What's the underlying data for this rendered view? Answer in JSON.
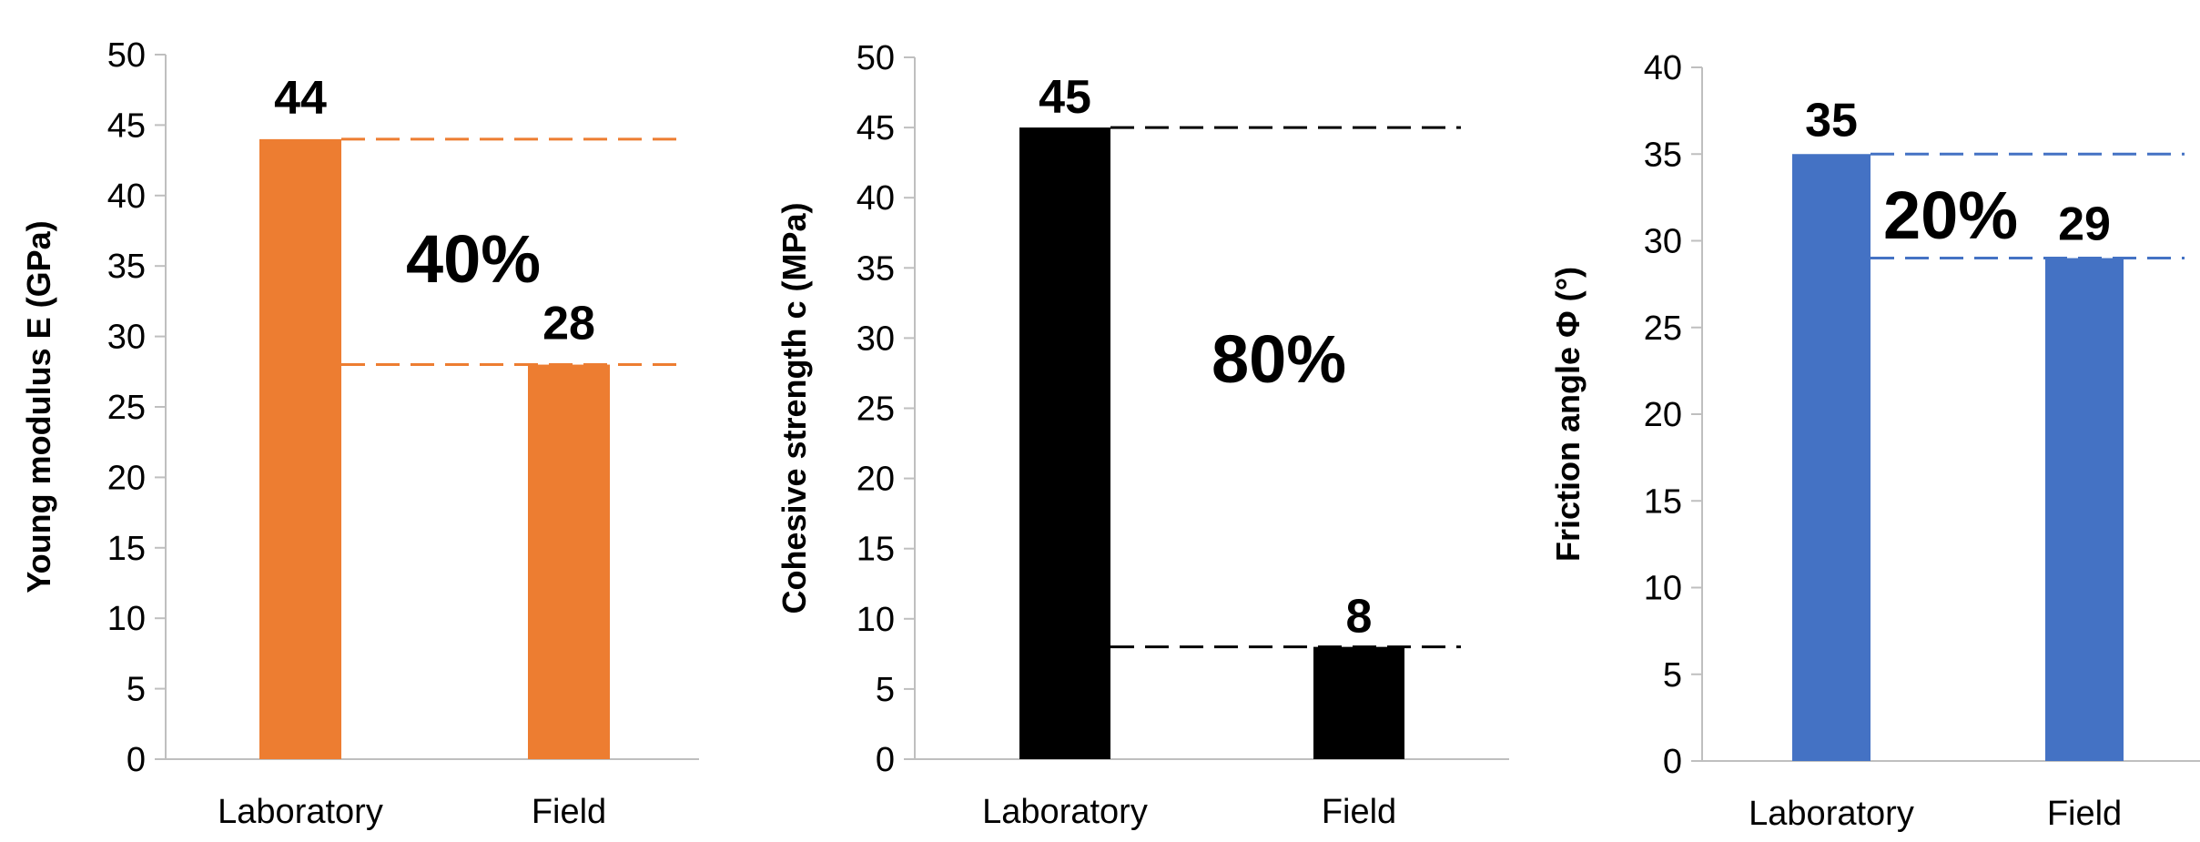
{
  "chart_data": [
    {
      "type": "bar",
      "categories": [
        "Laboratory",
        "Field"
      ],
      "values": [
        44,
        28
      ],
      "ylabel": "Young modulus E (GPa)",
      "ylim": [
        0,
        50
      ],
      "yticks": [
        0,
        5,
        10,
        15,
        20,
        25,
        30,
        35,
        40,
        45,
        50
      ],
      "data_labels": [
        "44",
        "28"
      ],
      "annotation": "40%",
      "color": "#ED7D31",
      "grid": false
    },
    {
      "type": "bar",
      "categories": [
        "Laboratory",
        "Field"
      ],
      "values": [
        45,
        8
      ],
      "ylabel": "Cohesive strength c  (MPa)",
      "ylim": [
        0,
        50
      ],
      "yticks": [
        0,
        5,
        10,
        15,
        20,
        25,
        30,
        35,
        40,
        45,
        50
      ],
      "data_labels": [
        "45",
        "8"
      ],
      "annotation": "80%",
      "color": "#000000",
      "grid": false
    },
    {
      "type": "bar",
      "categories": [
        "Laboratory",
        "Field"
      ],
      "values": [
        35,
        29
      ],
      "ylabel": "Friction angle Φ (°)",
      "ylim": [
        0,
        40
      ],
      "yticks": [
        0,
        5,
        10,
        15,
        20,
        25,
        30,
        35,
        40
      ],
      "data_labels": [
        "35",
        "29"
      ],
      "annotation": "20%",
      "color": "#4472C4",
      "grid": false
    }
  ]
}
